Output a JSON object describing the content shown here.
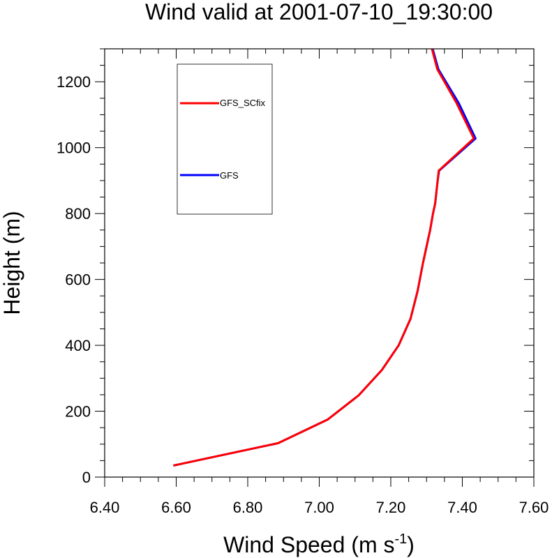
{
  "chart_data": {
    "type": "line",
    "title": "Wind valid at 2001-07-10_19:30:00",
    "xlabel_base": "Wind Speed (m s",
    "xlabel_sup": "-1",
    "xlabel_close": ")",
    "ylabel": "Height (m)",
    "xlim": [
      6.4,
      7.6
    ],
    "ylim": [
      0,
      1300
    ],
    "xticks": [
      6.4,
      6.6,
      6.8,
      7.0,
      7.2,
      7.4,
      7.6
    ],
    "xtick_labels": [
      "6.40",
      "6.60",
      "6.80",
      "7.00",
      "7.20",
      "7.40",
      "7.60"
    ],
    "yticks": [
      0,
      200,
      400,
      600,
      800,
      1000,
      1200
    ],
    "ytick_labels": [
      "0",
      "200",
      "400",
      "600",
      "800",
      "1000",
      "1200"
    ],
    "legend_position": "top-left",
    "series": [
      {
        "name": "GFS",
        "color": "#0000ff",
        "x": [
          6.592,
          6.885,
          7.024,
          7.11,
          7.175,
          7.222,
          7.255,
          7.275,
          7.29,
          7.3,
          7.31,
          7.318,
          7.324,
          7.328,
          7.331,
          7.335,
          7.437,
          7.39,
          7.333,
          7.317
        ],
        "y": [
          35,
          103,
          175,
          248,
          325,
          400,
          480,
          565,
          650,
          700,
          750,
          800,
          830,
          870,
          900,
          930,
          1028,
          1135,
          1238,
          1300
        ]
      },
      {
        "name": "GFS_SCfix",
        "color": "#ff0000",
        "x": [
          6.592,
          6.885,
          7.024,
          7.11,
          7.175,
          7.222,
          7.255,
          7.275,
          7.29,
          7.3,
          7.31,
          7.318,
          7.324,
          7.328,
          7.331,
          7.334,
          7.432,
          7.384,
          7.33,
          7.315
        ],
        "y": [
          35,
          103,
          175,
          248,
          325,
          400,
          480,
          565,
          650,
          700,
          750,
          800,
          830,
          870,
          900,
          930,
          1028,
          1135,
          1238,
          1300
        ]
      }
    ],
    "legend": [
      {
        "label": "GFS_SCfix",
        "color": "#ff0000"
      },
      {
        "label": "GFS",
        "color": "#0000ff"
      }
    ]
  }
}
